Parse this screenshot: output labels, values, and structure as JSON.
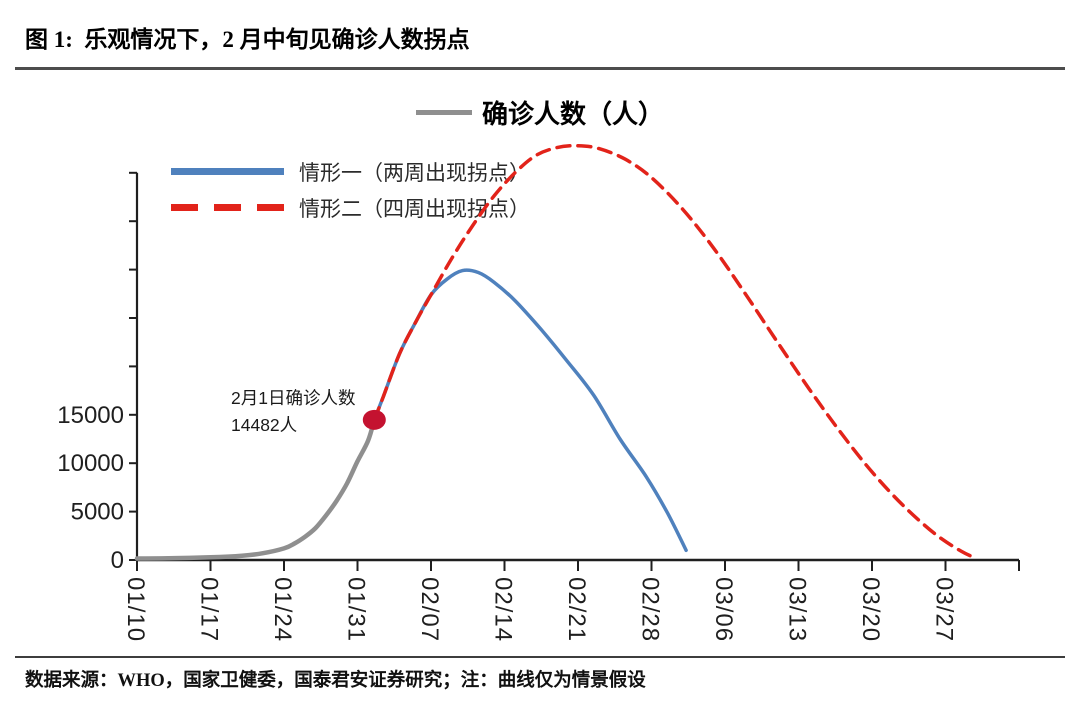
{
  "figure": {
    "title": "图 1:  乐观情况下，2 月中旬见确诊人数拐点",
    "source_note": "数据来源：WHO，国家卫健委，国泰君安证券研究；注：曲线仅为情景假设"
  },
  "chart_data": {
    "type": "line",
    "title": "确诊人数（人）",
    "grid": false,
    "legend_position": "top-left-inside",
    "x_axis": {
      "tick_labels": [
        "01/10",
        "01/17",
        "01/24",
        "01/31",
        "02/07",
        "02/14",
        "02/21",
        "02/28",
        "03/06",
        "03/13",
        "03/20",
        "03/27"
      ],
      "tick_interval_days": 7,
      "extra_end_tick_day": 84,
      "label_rotation_deg": 90
    },
    "y_axis": {
      "min": 0,
      "max": 40000,
      "tick_step": 5000,
      "labeled_ticks": [
        0,
        5000,
        10000,
        15000
      ]
    },
    "axis_color": "#1f1f1f",
    "series": [
      {
        "name": "确诊人数（人）",
        "role": "actual-data",
        "color": "#8f8f8f",
        "style": "solid",
        "width": 4.5,
        "points": [
          [
            0,
            150
          ],
          [
            3,
            180
          ],
          [
            7,
            280
          ],
          [
            10,
            440
          ],
          [
            12,
            700
          ],
          [
            14,
            1200
          ],
          [
            15,
            1700
          ],
          [
            16,
            2400
          ],
          [
            17,
            3300
          ],
          [
            18,
            4600
          ],
          [
            19,
            6100
          ],
          [
            20,
            7900
          ],
          [
            21,
            10200
          ],
          [
            22,
            12300
          ],
          [
            22.6,
            14482
          ]
        ]
      },
      {
        "name": "情形一（两周出现拐点）",
        "role": "scenario-1-two-week-inflection",
        "color": "#4f81bd",
        "style": "solid",
        "width": 3.5,
        "points": [
          [
            22.6,
            14482
          ],
          [
            23.5,
            17000
          ],
          [
            25,
            21300
          ],
          [
            26.5,
            24500
          ],
          [
            28,
            27400
          ],
          [
            29.5,
            29000
          ],
          [
            31,
            29900
          ],
          [
            32.5,
            29700
          ],
          [
            34,
            28700
          ],
          [
            36,
            26800
          ],
          [
            38.5,
            23800
          ],
          [
            41,
            20500
          ],
          [
            43.5,
            17000
          ],
          [
            46,
            12500
          ],
          [
            48.5,
            8600
          ],
          [
            50.5,
            4900
          ],
          [
            52.3,
            1000
          ]
        ]
      },
      {
        "name": "情形二（四周出现拐点）",
        "role": "scenario-2-four-week-inflection",
        "color": "#e2231a",
        "style": "dashed",
        "width": 3.5,
        "dash": "13 8",
        "points": [
          [
            22.6,
            14482
          ],
          [
            23.5,
            17000
          ],
          [
            25,
            21300
          ],
          [
            26.5,
            24500
          ],
          [
            28,
            27400
          ],
          [
            30,
            31200
          ],
          [
            32,
            34600
          ],
          [
            34,
            37600
          ],
          [
            36,
            40000
          ],
          [
            38,
            41800
          ],
          [
            40,
            42600
          ],
          [
            42,
            42800
          ],
          [
            44,
            42500
          ],
          [
            46.5,
            41400
          ],
          [
            49,
            39500
          ],
          [
            52,
            36200
          ],
          [
            55,
            32100
          ],
          [
            58,
            27400
          ],
          [
            61,
            22500
          ],
          [
            64,
            17700
          ],
          [
            67,
            13200
          ],
          [
            70,
            9100
          ],
          [
            73,
            5600
          ],
          [
            76,
            2700
          ],
          [
            78.5,
            900
          ],
          [
            80,
            150
          ]
        ]
      }
    ],
    "annotation": {
      "line1": "2月1日确诊人数",
      "line2": "14482人",
      "date": "02/01",
      "value": 14482,
      "marker_day": 22.6,
      "marker_color": "#c41230"
    },
    "x_note": "points are [days since 01/10, confirmed persons]"
  }
}
